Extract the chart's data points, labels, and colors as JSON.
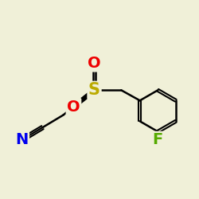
{
  "bg_color": "#f0f0d8",
  "atom_colors": {
    "N": "#0000ee",
    "O": "#ee0000",
    "S": "#bbaa00",
    "F": "#55aa00"
  },
  "bond_color": "#000000",
  "bond_width": 1.8,
  "font_size": 14,
  "S_font_size": 15
}
